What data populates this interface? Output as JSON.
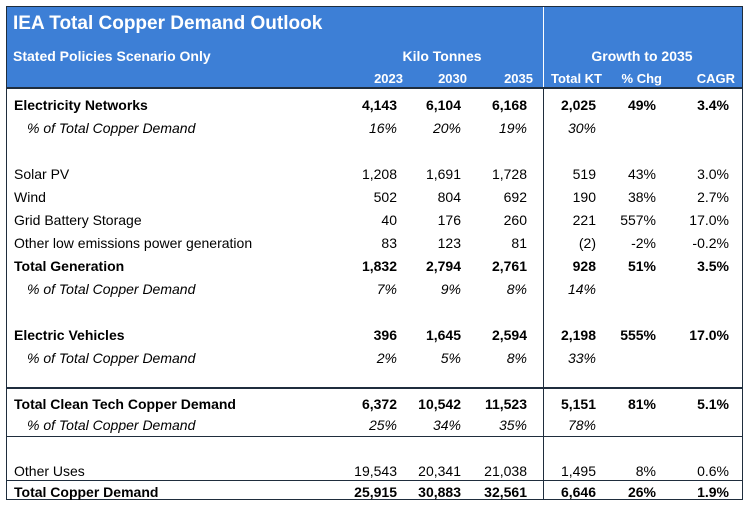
{
  "header": {
    "title": "IEA Total Copper Demand Outlook",
    "subtitle": "Stated Policies Scenario Only",
    "group_kt": "Kilo Tonnes",
    "group_growth": "Growth to 2035",
    "columns": [
      "2023",
      "2030",
      "2035",
      "Total KT",
      "% Chg",
      "CAGR"
    ]
  },
  "rows": [
    {
      "label": "Electricity Networks",
      "values": [
        "4,143",
        "6,104",
        "6,168",
        "2,025",
        "49%",
        "3.4%"
      ]
    },
    {
      "label": "% of Total Copper Demand",
      "values": [
        "16%",
        "20%",
        "19%",
        "30%",
        "",
        ""
      ]
    },
    {
      "label": "Solar PV",
      "values": [
        "1,208",
        "1,691",
        "1,728",
        "519",
        "43%",
        "3.0%"
      ]
    },
    {
      "label": "Wind",
      "values": [
        "502",
        "804",
        "692",
        "190",
        "38%",
        "2.7%"
      ]
    },
    {
      "label": "Grid Battery Storage",
      "values": [
        "40",
        "176",
        "260",
        "221",
        "557%",
        "17.0%"
      ]
    },
    {
      "label": "Other low emissions power generation",
      "values": [
        "83",
        "123",
        "81",
        "(2)",
        "-2%",
        "-0.2%"
      ]
    },
    {
      "label": "Total Generation",
      "values": [
        "1,832",
        "2,794",
        "2,761",
        "928",
        "51%",
        "3.5%"
      ]
    },
    {
      "label": "% of Total Copper Demand",
      "values": [
        "7%",
        "9%",
        "8%",
        "14%",
        "",
        ""
      ]
    },
    {
      "label": "Electric Vehicles",
      "values": [
        "396",
        "1,645",
        "2,594",
        "2,198",
        "555%",
        "17.0%"
      ]
    },
    {
      "label": "% of Total Copper Demand",
      "values": [
        "2%",
        "5%",
        "8%",
        "33%",
        "",
        ""
      ]
    },
    {
      "label": "Total Clean Tech Copper Demand",
      "values": [
        "6,372",
        "10,542",
        "11,523",
        "5,151",
        "81%",
        "5.1%"
      ]
    },
    {
      "label": "% of Total Copper Demand",
      "values": [
        "25%",
        "34%",
        "35%",
        "78%",
        "",
        ""
      ]
    },
    {
      "label": "Other Uses",
      "values": [
        "19,543",
        "20,341",
        "21,038",
        "1,495",
        "8%",
        "0.6%"
      ]
    },
    {
      "label": "Total Copper Demand",
      "values": [
        "25,915",
        "30,883",
        "32,561",
        "6,646",
        "26%",
        "1.9%"
      ]
    }
  ]
}
